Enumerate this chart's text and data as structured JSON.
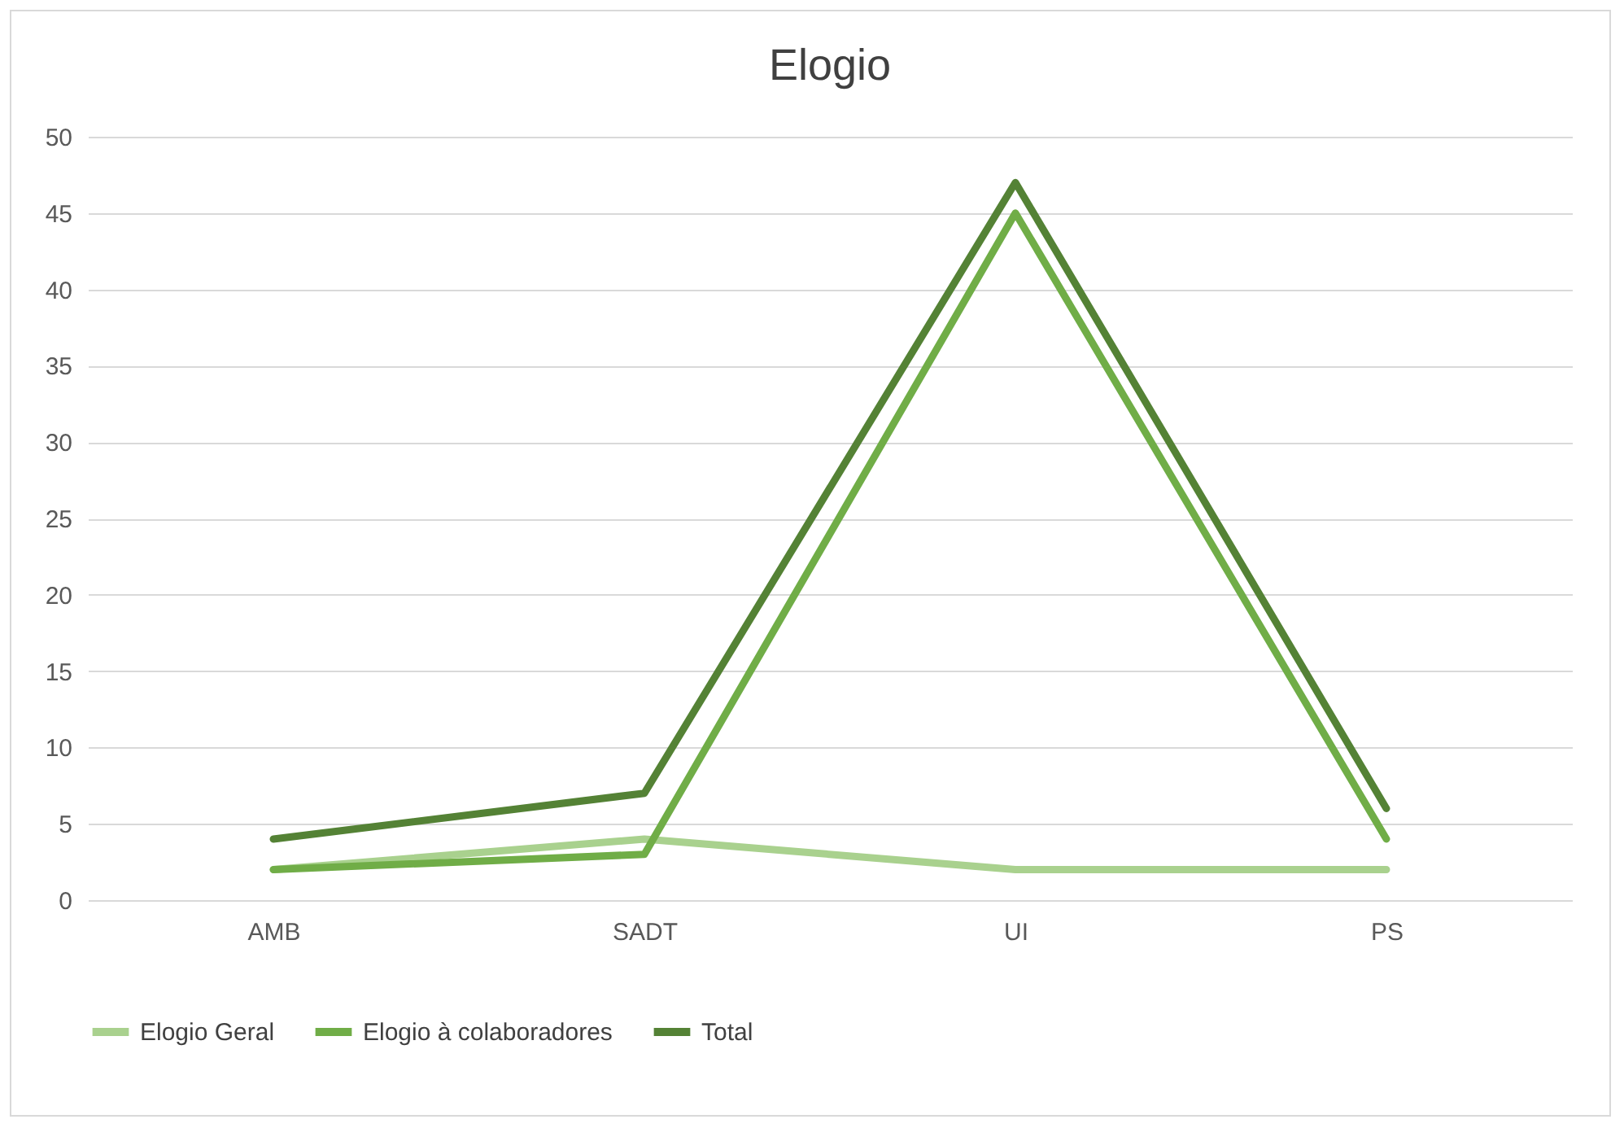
{
  "chart_data": {
    "type": "line",
    "title": "Elogio",
    "categories": [
      "AMB",
      "SADT",
      "UI",
      "PS"
    ],
    "series": [
      {
        "name": "Elogio Geral",
        "color": "#a9d18e",
        "values": [
          2,
          4,
          2,
          2
        ]
      },
      {
        "name": "Elogio à colaboradores",
        "color": "#70ad47",
        "values": [
          2,
          3,
          45,
          4
        ]
      },
      {
        "name": "Total",
        "color": "#548235",
        "values": [
          4,
          7,
          47,
          6
        ]
      }
    ],
    "ylim": [
      0,
      50
    ],
    "yticks": [
      0,
      5,
      10,
      15,
      20,
      25,
      30,
      35,
      40,
      45,
      50
    ],
    "grid": "y",
    "legend": "bottom",
    "marker": "none",
    "line_style": "solid"
  }
}
